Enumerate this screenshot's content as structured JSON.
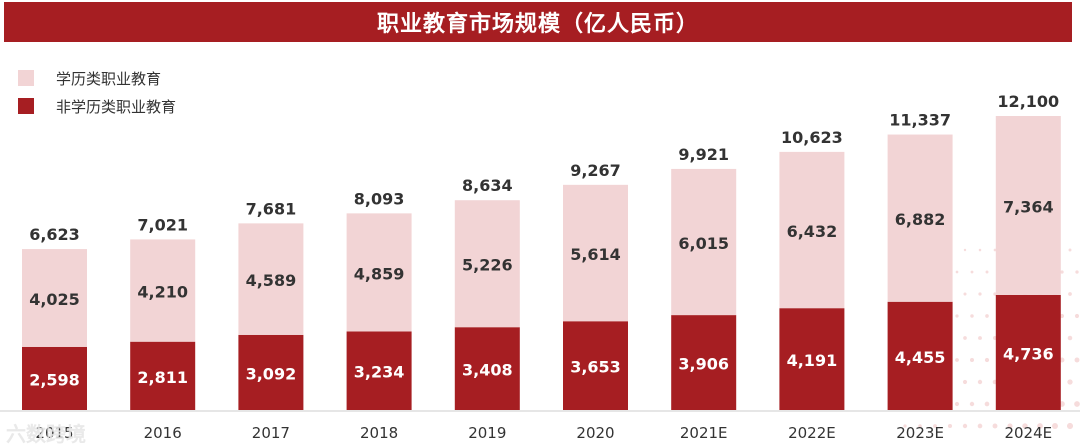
{
  "chart_data": {
    "type": "bar",
    "stacked": true,
    "title": "职业教育市场规模（亿人民币）",
    "categories": [
      "2015",
      "2016",
      "2017",
      "2018",
      "2019",
      "2020",
      "2021E",
      "2022E",
      "2023E",
      "2024E"
    ],
    "series": [
      {
        "name": "非学历类职业教育",
        "color": "#a61e22",
        "values": [
          2598,
          2811,
          3092,
          3234,
          3408,
          3653,
          3906,
          4191,
          4455,
          4736
        ]
      },
      {
        "name": "学历类职业教育",
        "color": "#f2d4d5",
        "values": [
          4025,
          4210,
          4589,
          4859,
          5226,
          5614,
          6015,
          6432,
          6882,
          7364
        ]
      }
    ],
    "totals": [
      6623,
      7021,
      7681,
      8093,
      8634,
      9267,
      9921,
      10623,
      11337,
      12100
    ],
    "legend_position": "top-left",
    "grid": false,
    "ylim": [
      0,
      12100
    ]
  },
  "watermark_text": "六数跨境",
  "colors": {
    "accent": "#a61e22",
    "light": "#f2d4d5",
    "text": "#333333"
  }
}
